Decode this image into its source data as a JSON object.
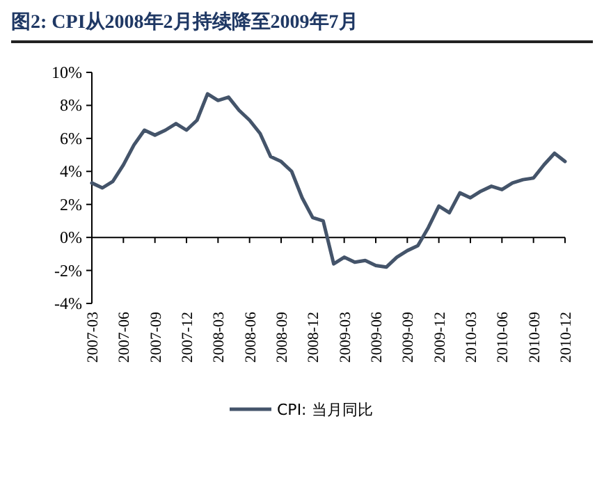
{
  "chart_data": {
    "type": "line",
    "title": "图2: CPI从2008年2月持续降至2009年7月",
    "categories": [
      "2007-03",
      null,
      null,
      "2007-06",
      null,
      null,
      "2007-09",
      null,
      null,
      "2007-12",
      null,
      null,
      "2008-03",
      null,
      null,
      "2008-06",
      null,
      null,
      "2008-09",
      null,
      null,
      "2008-12",
      null,
      null,
      "2009-03",
      null,
      null,
      "2009-06",
      null,
      null,
      "2009-09",
      null,
      null,
      "2009-12",
      null,
      null,
      "2010-03",
      null,
      null,
      "2010-06",
      null,
      null,
      "2010-09",
      null,
      null,
      "2010-12"
    ],
    "series": [
      {
        "name": "CPI: 当月同比",
        "color": "#44546a",
        "values": [
          3.3,
          3.0,
          3.4,
          4.4,
          5.6,
          6.5,
          6.2,
          6.5,
          6.9,
          6.5,
          7.1,
          8.7,
          8.3,
          8.5,
          7.7,
          7.1,
          6.3,
          4.9,
          4.6,
          4.0,
          2.4,
          1.2,
          1.0,
          -1.6,
          -1.2,
          -1.5,
          -1.4,
          -1.7,
          -1.8,
          -1.2,
          -0.8,
          -0.5,
          0.6,
          1.9,
          1.5,
          2.7,
          2.4,
          2.8,
          3.1,
          2.9,
          3.3,
          3.5,
          3.6,
          4.4,
          5.1,
          4.6
        ]
      }
    ],
    "ylim": [
      -4,
      10
    ],
    "yticks": [
      {
        "value": -4,
        "label": "-4%"
      },
      {
        "value": -2,
        "label": "-2%"
      },
      {
        "value": 0,
        "label": "0%"
      },
      {
        "value": 2,
        "label": "2%"
      },
      {
        "value": 4,
        "label": "4%"
      },
      {
        "value": 6,
        "label": "6%"
      },
      {
        "value": 8,
        "label": "8%"
      },
      {
        "value": 10,
        "label": "10%"
      }
    ],
    "legend": "bottom",
    "marker": "none",
    "line_style": "solid"
  }
}
